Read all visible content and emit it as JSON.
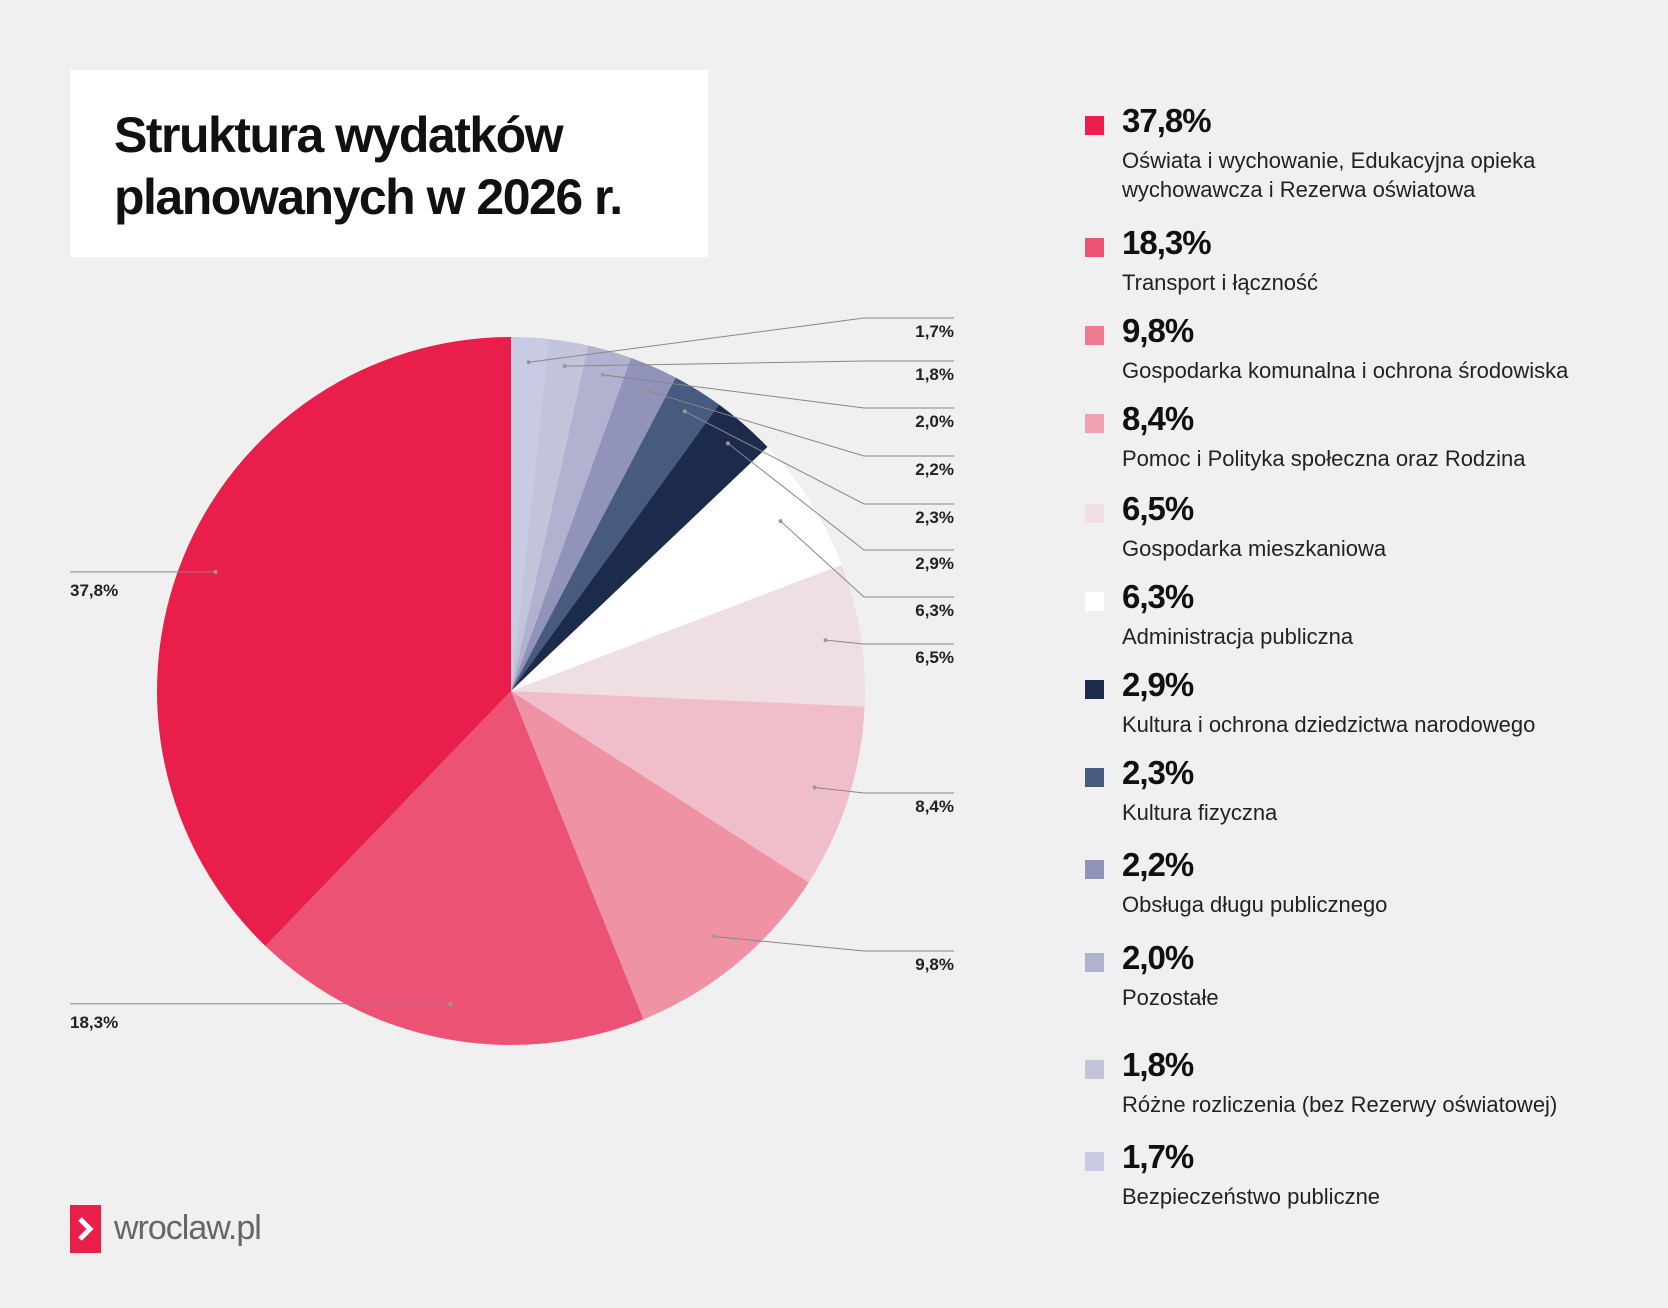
{
  "chart_data": {
    "type": "pie",
    "title": "Struktura wydatków planowanych w 2026 r.",
    "start_angle": "12 o'clock, clockwise",
    "legend_placement": "right",
    "slices": [
      {
        "value": 1.7,
        "label": "1,7%",
        "name": "Bezpieczeństwo publiczne",
        "color": "#c9cbe5"
      },
      {
        "value": 1.8,
        "label": "1,8%",
        "name": "Różne rozliczenia (bez Rezerwy oświatowej)",
        "color": "#c3c4da"
      },
      {
        "value": 2.0,
        "label": "2,0%",
        "name": "Pozostałe",
        "color": "#b0b2d0"
      },
      {
        "value": 2.2,
        "label": "2,2%",
        "name": "Obsługa długu publicznego",
        "color": "#9194b8"
      },
      {
        "value": 2.3,
        "label": "2,3%",
        "name": "Kultura fizyczna",
        "color": "#475a80"
      },
      {
        "value": 2.9,
        "label": "2,9%",
        "name": "Kultura i ochrona dziedzictwa narodowego",
        "color": "#1c2a4c"
      },
      {
        "value": 6.3,
        "label": "6,3%",
        "name": "Administracja publiczna",
        "color": "#ffffff"
      },
      {
        "value": 6.5,
        "label": "6,5%",
        "name": "Gospodarka mieszkaniowa",
        "color": "#efdfe3"
      },
      {
        "value": 8.4,
        "label": "8,4%",
        "name": "Pomoc i Polityka społeczna oraz Rodzina",
        "color": "#f0becA"
      },
      {
        "value": 9.8,
        "label": "9,8%",
        "name": "Gospodarka komunalna i ochrona środowiska",
        "color": "#ee92a4"
      },
      {
        "value": 18.3,
        "label": "18,3%",
        "name": "Transport i łączność",
        "color": "#eb5274"
      },
      {
        "value": 37.8,
        "label": "37,8%",
        "name": "Oświata i wychowanie, Edukacyjna opieka wychowawcza i Rezerwa oświatowa",
        "color": "#ea1e4b"
      }
    ]
  },
  "legend": [
    {
      "pct": "37,8%",
      "desc": "Oświata i wychowanie, Edukacyjna opieka wychowawcza i Rezerwa oświatowa",
      "color": "#ea1e4b"
    },
    {
      "pct": "18,3%",
      "desc": "Transport i łączność",
      "color": "#eb5274"
    },
    {
      "pct": "9,8%",
      "desc": "Gospodarka komunalna i ochrona środowiska",
      "color": "#ee7a91"
    },
    {
      "pct": "8,4%",
      "desc": "Pomoc i Polityka społeczna oraz Rodzina",
      "color": "#f0a0b1"
    },
    {
      "pct": "6,5%",
      "desc": "Gospodarka mieszkaniowa",
      "color": "#efdfe3"
    },
    {
      "pct": "6,3%",
      "desc": "Administracja publiczna",
      "color": "#ffffff"
    },
    {
      "pct": "2,9%",
      "desc": "Kultura i ochrona dziedzictwa narodowego",
      "color": "#1c2a4c"
    },
    {
      "pct": "2,3%",
      "desc": "Kultura fizyczna",
      "color": "#475a80"
    },
    {
      "pct": "2,2%",
      "desc": "Obsługa długu publicznego",
      "color": "#9194b8"
    },
    {
      "pct": "2,0%",
      "desc": "Pozostałe",
      "color": "#b0b2d0"
    },
    {
      "pct": "1,8%",
      "desc": "Różne rozliczenia (bez Rezerwy oświatowej)",
      "color": "#c3c4da"
    },
    {
      "pct": "1,7%",
      "desc": "Bezpieczeństwo publiczne",
      "color": "#c9cbe5"
    }
  ],
  "logo": {
    "text": "wroclaw.pl",
    "color": "#e91e4b"
  },
  "background": "#f0f0f0"
}
